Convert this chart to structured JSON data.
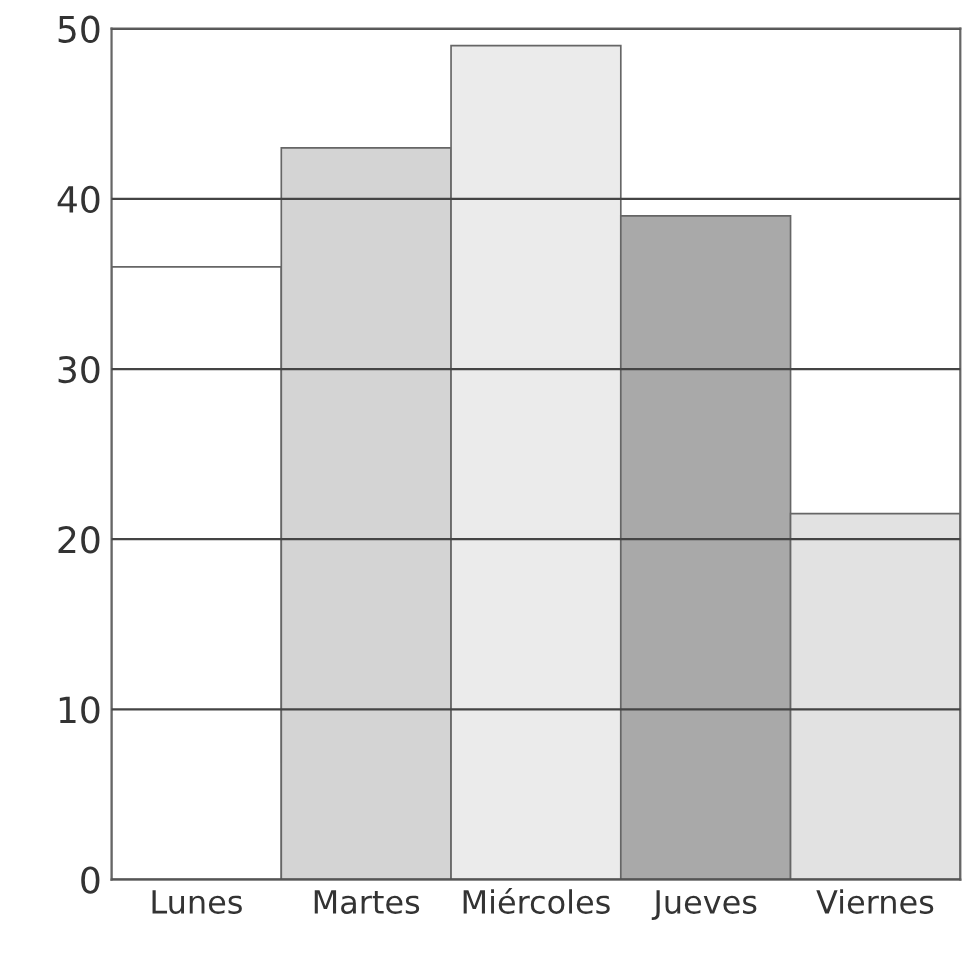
{
  "chart_data": {
    "type": "bar",
    "categories": [
      "Lunes",
      "Martes",
      "Miércoles",
      "Jueves",
      "Viernes"
    ],
    "values": [
      36,
      43,
      49,
      39,
      21.5
    ],
    "colors": [
      "#ffffff",
      "#d4d4d4",
      "#ebebeb",
      "#a9a9a9",
      "#e2e2e2"
    ],
    "ylim": [
      0,
      50
    ],
    "yticks": [
      0,
      10,
      20,
      30,
      40,
      50
    ],
    "grid": "y"
  }
}
